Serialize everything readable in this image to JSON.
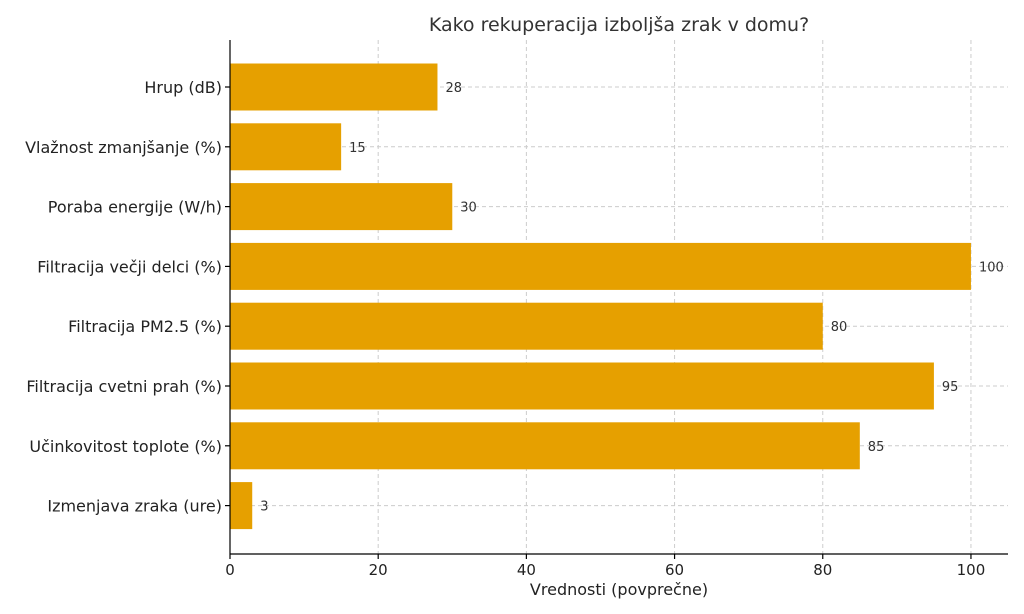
{
  "chart_data": {
    "type": "bar",
    "orientation": "horizontal",
    "title": "Kako rekuperacija izboljša zrak v domu?",
    "xlabel": "Vrednosti (povprečne)",
    "ylabel": "",
    "categories": [
      "Hrup (dB)",
      "Vlažnost zmanjšanje (%)",
      "Poraba energije (W/h)",
      "Filtracija večji delci (%)",
      "Filtracija PM2.5 (%)",
      "Filtracija cvetni prah (%)",
      "Učinkovitost toplote (%)",
      "Izmenjava zraka (ure)"
    ],
    "values": [
      28,
      15,
      30,
      100,
      80,
      95,
      85,
      3
    ],
    "value_labels": [
      "28",
      "15",
      "30",
      "100",
      "80",
      "95",
      "85",
      "3"
    ],
    "xlim": [
      0,
      105
    ],
    "xticks": [
      0,
      20,
      40,
      60,
      80,
      100
    ],
    "xtick_labels": [
      "0",
      "20",
      "40",
      "60",
      "80",
      "100"
    ],
    "grid": true,
    "bar_color": "#e6a000"
  }
}
